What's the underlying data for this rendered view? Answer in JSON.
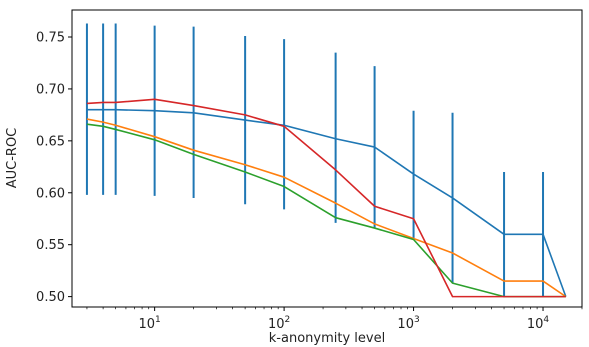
{
  "chart_data": {
    "type": "line",
    "title": "",
    "xlabel": "k-anonymity level",
    "ylabel": "AUC-ROC",
    "xscale": "log",
    "xlim": [
      2.3,
      20000
    ],
    "ylim": [
      0.49,
      0.776
    ],
    "x_ticks": [
      {
        "value": 10,
        "base": "10",
        "exp": "1"
      },
      {
        "value": 100,
        "base": "10",
        "exp": "2"
      },
      {
        "value": 1000,
        "base": "10",
        "exp": "3"
      },
      {
        "value": 10000,
        "base": "10",
        "exp": "4"
      }
    ],
    "y_ticks": [
      "0.50",
      "0.55",
      "0.60",
      "0.65",
      "0.70",
      "0.75"
    ],
    "y_tick_values": [
      0.5,
      0.55,
      0.6,
      0.65,
      0.7,
      0.75
    ],
    "grid": false,
    "series": [
      {
        "color": "#1f77b4",
        "x": [
          3,
          4,
          5,
          10,
          20,
          50,
          100,
          250,
          500,
          1000,
          2000,
          5000,
          10000,
          15000
        ],
        "y": [
          0.68,
          0.68,
          0.68,
          0.679,
          0.677,
          0.67,
          0.665,
          0.652,
          0.644,
          0.618,
          0.595,
          0.56,
          0.56,
          0.5
        ]
      },
      {
        "color": "#ff7f0e",
        "x": [
          3,
          4,
          5,
          10,
          20,
          50,
          100,
          250,
          500,
          1000,
          2000,
          5000,
          10000,
          15000
        ],
        "y": [
          0.671,
          0.668,
          0.665,
          0.654,
          0.641,
          0.627,
          0.615,
          0.59,
          0.57,
          0.556,
          0.542,
          0.515,
          0.515,
          0.5
        ]
      },
      {
        "color": "#2ca02c",
        "x": [
          3,
          4,
          5,
          10,
          20,
          50,
          100,
          250,
          500,
          1000,
          2000,
          5000,
          10000,
          15000
        ],
        "y": [
          0.666,
          0.664,
          0.661,
          0.651,
          0.637,
          0.62,
          0.606,
          0.576,
          0.566,
          0.555,
          0.513,
          0.5,
          0.5,
          0.5
        ]
      },
      {
        "color": "#d62728",
        "x": [
          3,
          4,
          5,
          10,
          20,
          50,
          100,
          250,
          500,
          1000,
          2000,
          5000,
          10000,
          15000
        ],
        "y": [
          0.686,
          0.687,
          0.687,
          0.69,
          0.684,
          0.675,
          0.664,
          0.622,
          0.587,
          0.575,
          0.5,
          0.5,
          0.5,
          0.5
        ]
      }
    ],
    "error_bars": {
      "color": "#1f77b4",
      "bars": [
        {
          "x": 3,
          "low": 0.598,
          "high": 0.763
        },
        {
          "x": 4,
          "low": 0.598,
          "high": 0.763
        },
        {
          "x": 5,
          "low": 0.598,
          "high": 0.763
        },
        {
          "x": 10,
          "low": 0.597,
          "high": 0.761
        },
        {
          "x": 20,
          "low": 0.595,
          "high": 0.76
        },
        {
          "x": 50,
          "low": 0.589,
          "high": 0.751
        },
        {
          "x": 100,
          "low": 0.584,
          "high": 0.748
        },
        {
          "x": 250,
          "low": 0.571,
          "high": 0.735
        },
        {
          "x": 500,
          "low": 0.566,
          "high": 0.722
        },
        {
          "x": 1000,
          "low": 0.556,
          "high": 0.679
        },
        {
          "x": 2000,
          "low": 0.513,
          "high": 0.677
        },
        {
          "x": 5000,
          "low": 0.5,
          "high": 0.62
        },
        {
          "x": 10000,
          "low": 0.5,
          "high": 0.62
        }
      ]
    }
  }
}
